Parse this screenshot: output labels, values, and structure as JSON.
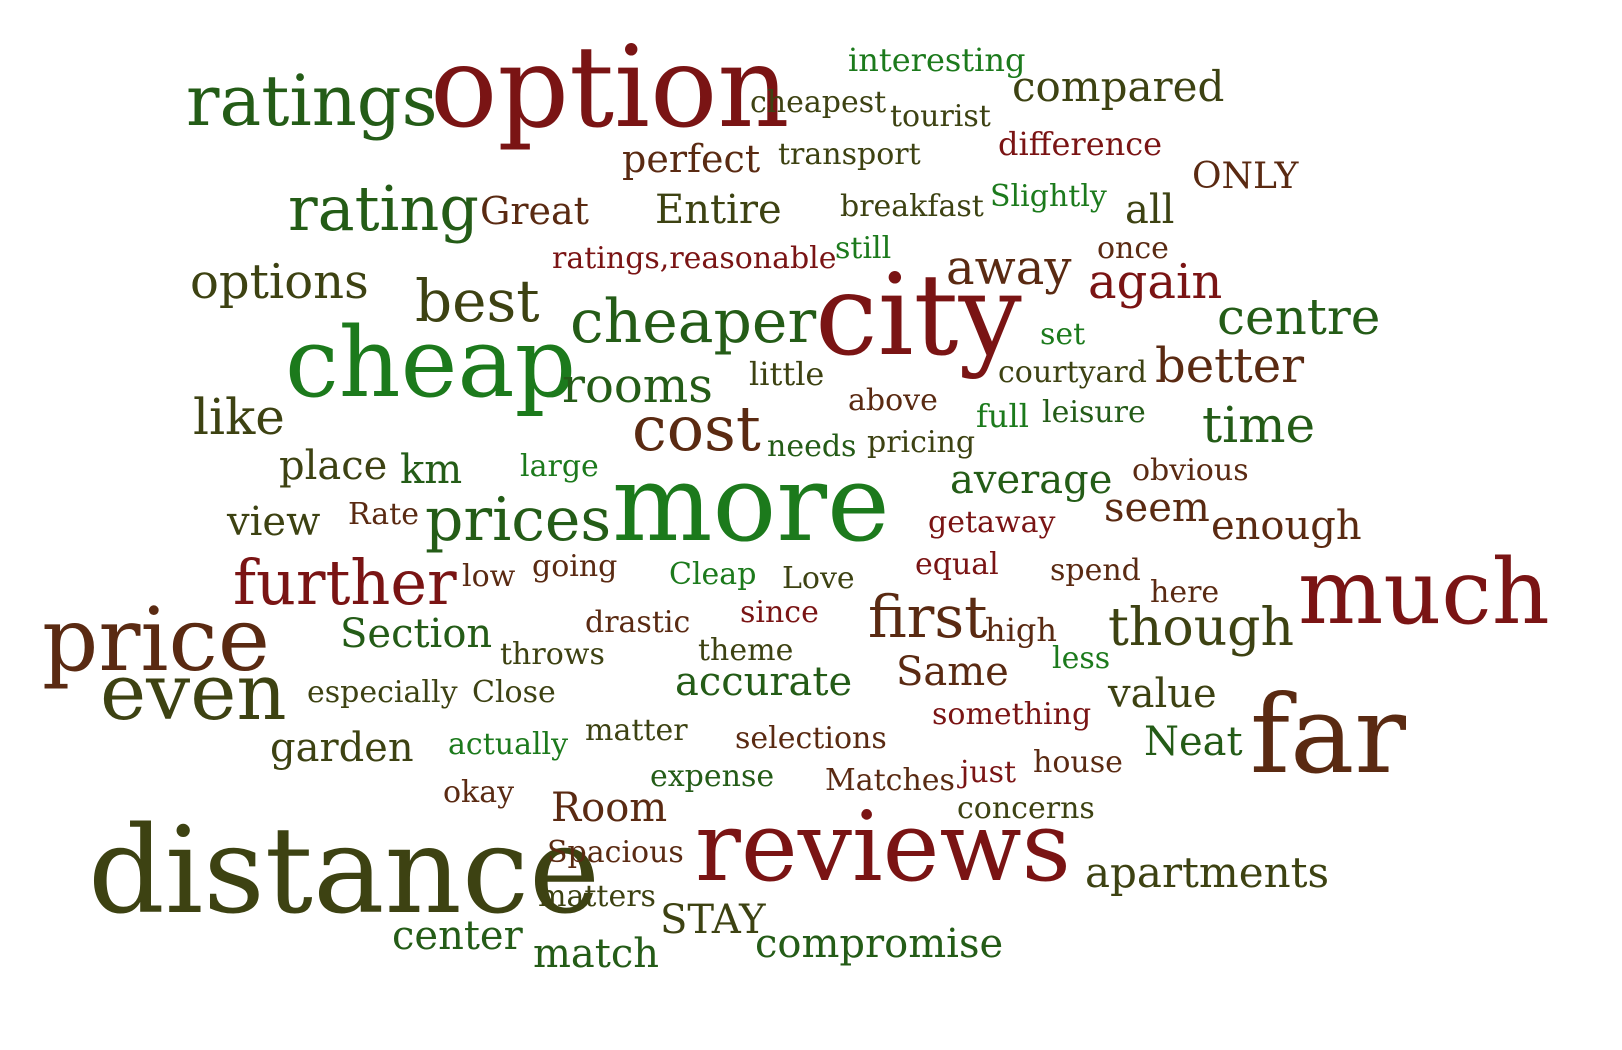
{
  "palette": {
    "dark_red": "#7a1414",
    "brown": "#5a2a12",
    "dark_olive": "#3d4212",
    "dark_green": "#245c17",
    "green": "#1c7a1c"
  },
  "words": [
    {
      "text": "ratings",
      "color": "dark_green"
    },
    {
      "text": "option",
      "color": "dark_red"
    },
    {
      "text": "interesting",
      "color": "green"
    },
    {
      "text": "cheapest",
      "color": "dark_olive"
    },
    {
      "text": "tourist",
      "color": "dark_olive"
    },
    {
      "text": "compared",
      "color": "dark_olive"
    },
    {
      "text": "perfect",
      "color": "brown"
    },
    {
      "text": "transport",
      "color": "dark_olive"
    },
    {
      "text": "difference",
      "color": "dark_red"
    },
    {
      "text": "ONLY",
      "color": "brown"
    },
    {
      "text": "rating",
      "color": "dark_green"
    },
    {
      "text": "Great",
      "color": "brown"
    },
    {
      "text": "Entire",
      "color": "dark_olive"
    },
    {
      "text": "breakfast",
      "color": "dark_olive"
    },
    {
      "text": "Slightly",
      "color": "green"
    },
    {
      "text": "all",
      "color": "dark_olive"
    },
    {
      "text": "ratings,reasonable",
      "color": "dark_red"
    },
    {
      "text": "still",
      "color": "green"
    },
    {
      "text": "once",
      "color": "brown"
    },
    {
      "text": "options",
      "color": "dark_olive"
    },
    {
      "text": "best",
      "color": "dark_olive"
    },
    {
      "text": "away",
      "color": "brown"
    },
    {
      "text": "again",
      "color": "dark_red"
    },
    {
      "text": "cheaper",
      "color": "dark_green"
    },
    {
      "text": "city",
      "color": "dark_red"
    },
    {
      "text": "centre",
      "color": "dark_green"
    },
    {
      "text": "set",
      "color": "green"
    },
    {
      "text": "cheap",
      "color": "green"
    },
    {
      "text": "rooms",
      "color": "dark_green"
    },
    {
      "text": "little",
      "color": "dark_olive"
    },
    {
      "text": "courtyard",
      "color": "dark_olive"
    },
    {
      "text": "better",
      "color": "brown"
    },
    {
      "text": "like",
      "color": "dark_olive"
    },
    {
      "text": "above",
      "color": "brown"
    },
    {
      "text": "full",
      "color": "green"
    },
    {
      "text": "leisure",
      "color": "dark_green"
    },
    {
      "text": "cost",
      "color": "brown"
    },
    {
      "text": "time",
      "color": "dark_green"
    },
    {
      "text": "needs",
      "color": "dark_green"
    },
    {
      "text": "pricing",
      "color": "dark_olive"
    },
    {
      "text": "place",
      "color": "dark_olive"
    },
    {
      "text": "km",
      "color": "dark_green"
    },
    {
      "text": "large",
      "color": "green"
    },
    {
      "text": "more",
      "color": "green"
    },
    {
      "text": "average",
      "color": "dark_green"
    },
    {
      "text": "obvious",
      "color": "brown"
    },
    {
      "text": "view",
      "color": "dark_olive"
    },
    {
      "text": "Rate",
      "color": "brown"
    },
    {
      "text": "prices",
      "color": "dark_green"
    },
    {
      "text": "getaway",
      "color": "dark_red"
    },
    {
      "text": "seem",
      "color": "brown"
    },
    {
      "text": "enough",
      "color": "brown"
    },
    {
      "text": "further",
      "color": "dark_red"
    },
    {
      "text": "low",
      "color": "brown"
    },
    {
      "text": "going",
      "color": "brown"
    },
    {
      "text": "Cleap",
      "color": "green"
    },
    {
      "text": "Love",
      "color": "dark_olive"
    },
    {
      "text": "equal",
      "color": "dark_red"
    },
    {
      "text": "spend",
      "color": "brown"
    },
    {
      "text": "much",
      "color": "dark_red"
    },
    {
      "text": "here",
      "color": "brown"
    },
    {
      "text": "price",
      "color": "brown"
    },
    {
      "text": "drastic",
      "color": "brown"
    },
    {
      "text": "since",
      "color": "dark_red"
    },
    {
      "text": "first",
      "color": "brown"
    },
    {
      "text": "high",
      "color": "brown"
    },
    {
      "text": "though",
      "color": "dark_olive"
    },
    {
      "text": "Section",
      "color": "dark_green"
    },
    {
      "text": "throws",
      "color": "dark_olive"
    },
    {
      "text": "theme",
      "color": "dark_olive"
    },
    {
      "text": "less",
      "color": "green"
    },
    {
      "text": "even",
      "color": "dark_olive"
    },
    {
      "text": "accurate",
      "color": "dark_green"
    },
    {
      "text": "Same",
      "color": "brown"
    },
    {
      "text": "especially",
      "color": "dark_olive"
    },
    {
      "text": "Close",
      "color": "dark_olive"
    },
    {
      "text": "value",
      "color": "dark_olive"
    },
    {
      "text": "far",
      "color": "brown"
    },
    {
      "text": "something",
      "color": "dark_red"
    },
    {
      "text": "garden",
      "color": "dark_olive"
    },
    {
      "text": "actually",
      "color": "green"
    },
    {
      "text": "matter",
      "color": "dark_olive"
    },
    {
      "text": "selections",
      "color": "brown"
    },
    {
      "text": "Neat",
      "color": "dark_green"
    },
    {
      "text": "house",
      "color": "brown"
    },
    {
      "text": "just",
      "color": "dark_red"
    },
    {
      "text": "expense",
      "color": "dark_green"
    },
    {
      "text": "Matches",
      "color": "brown"
    },
    {
      "text": "okay",
      "color": "brown"
    },
    {
      "text": "Room",
      "color": "brown"
    },
    {
      "text": "concerns",
      "color": "dark_olive"
    },
    {
      "text": "distance",
      "color": "dark_olive"
    },
    {
      "text": "reviews",
      "color": "dark_red"
    },
    {
      "text": "Spacious",
      "color": "brown"
    },
    {
      "text": "apartments",
      "color": "dark_olive"
    },
    {
      "text": "matters",
      "color": "dark_olive"
    },
    {
      "text": "STAY",
      "color": "dark_olive"
    },
    {
      "text": "center",
      "color": "dark_green"
    },
    {
      "text": "match",
      "color": "dark_green"
    },
    {
      "text": "compromise",
      "color": "dark_green"
    }
  ]
}
